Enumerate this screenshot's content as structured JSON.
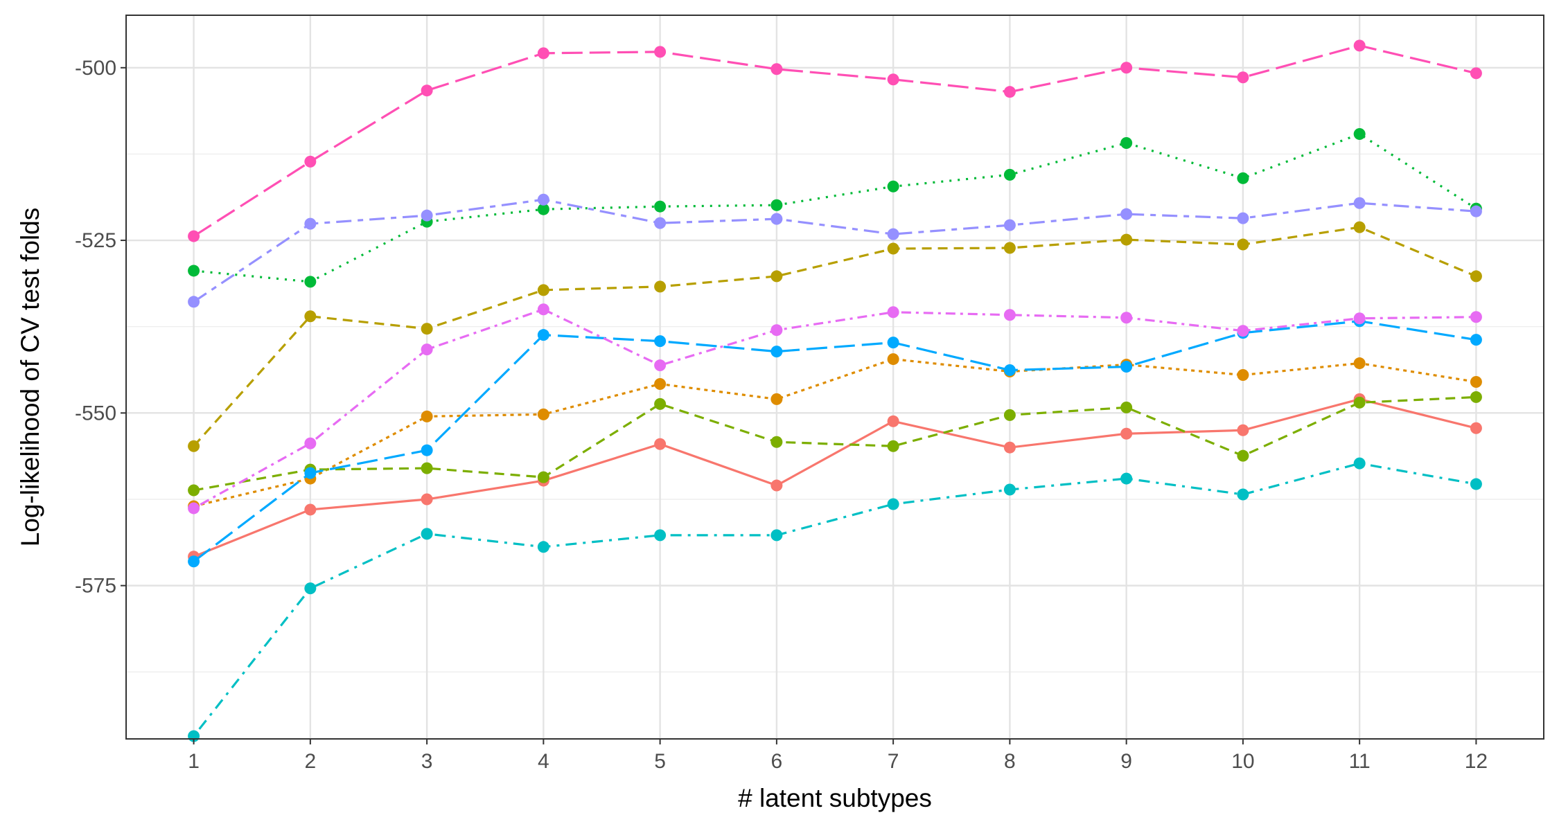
{
  "chart_data": {
    "type": "line",
    "title": "",
    "xlabel": "# latent subtypes",
    "ylabel": "Log-likelihood of CV test folds",
    "x": [
      1,
      2,
      3,
      4,
      5,
      6,
      7,
      8,
      9,
      10,
      11,
      12
    ],
    "x_tick_labels": [
      "1",
      "2",
      "3",
      "4",
      "5",
      "6",
      "7",
      "8",
      "9",
      "10",
      "11",
      "12"
    ],
    "y_tick_values": [
      -500,
      -525,
      -550,
      -575
    ],
    "y_tick_labels": [
      "-500",
      "-525",
      "-550",
      "-575"
    ],
    "xlim": [
      0.42,
      12.58
    ],
    "ylim": [
      -597.2,
      -492.4
    ],
    "grid": true,
    "legend": "none",
    "series": [
      {
        "color": "#F8766D",
        "dash": "solid",
        "values": [
          -570.8,
          -564.0,
          -562.5,
          -559.8,
          -554.5,
          -560.5,
          -551.2,
          -555.0,
          -553.0,
          -552.5,
          -548.0,
          -552.2
        ]
      },
      {
        "color": "#DE8C00",
        "dash": "dot-short",
        "values": [
          -563.5,
          -559.5,
          -550.5,
          -550.2,
          -545.8,
          -548.0,
          -542.2,
          -544.0,
          -543.0,
          -544.5,
          -542.8,
          -545.5
        ]
      },
      {
        "color": "#B79F00",
        "dash": "dashed",
        "values": [
          -554.8,
          -536.0,
          -537.8,
          -532.2,
          -531.7,
          -530.2,
          -526.2,
          -526.1,
          -524.9,
          -525.6,
          -523.1,
          -530.2
        ]
      },
      {
        "color": "#7CAE00",
        "dash": "dashed",
        "values": [
          -561.2,
          -558.2,
          -558.0,
          -559.3,
          -548.7,
          -554.2,
          -554.8,
          -550.3,
          -549.2,
          -556.2,
          -548.5,
          -547.7
        ]
      },
      {
        "color": "#00BA38",
        "dash": "dotted",
        "values": [
          -529.4,
          -531.0,
          -522.3,
          -520.5,
          -520.1,
          -519.9,
          -517.2,
          -515.5,
          -510.9,
          -516.0,
          -509.6,
          -520.4
        ]
      },
      {
        "color": "#00BFC4",
        "dash": "dotdash",
        "values": [
          -596.8,
          -575.4,
          -567.5,
          -569.4,
          -567.7,
          -567.7,
          -563.2,
          -561.1,
          -559.5,
          -561.8,
          -557.3,
          -560.3
        ]
      },
      {
        "color": "#00A9FF",
        "dash": "longdash",
        "values": [
          -571.5,
          -558.7,
          -555.4,
          -538.7,
          -539.6,
          -541.1,
          -539.8,
          -543.8,
          -543.3,
          -538.4,
          -536.7,
          -539.4
        ]
      },
      {
        "color": "#9590FF",
        "dash": "twodash",
        "values": [
          -533.9,
          -522.6,
          -521.4,
          -519.1,
          -522.5,
          -521.9,
          -524.1,
          -522.8,
          -521.2,
          -521.8,
          -519.6,
          -520.8
        ]
      },
      {
        "color": "#E76BF3",
        "dash": "dot-dash-dot",
        "values": [
          -563.8,
          -554.4,
          -540.8,
          -535.0,
          -543.1,
          -538.0,
          -535.4,
          -535.8,
          -536.2,
          -538.1,
          -536.3,
          -536.1
        ]
      },
      {
        "color": "#FF4FB4",
        "dash": "longdash",
        "values": [
          -524.4,
          -513.6,
          -503.3,
          -497.9,
          -497.7,
          -500.2,
          -501.7,
          -503.5,
          -500.0,
          -501.4,
          -496.8,
          -500.8
        ]
      }
    ]
  }
}
